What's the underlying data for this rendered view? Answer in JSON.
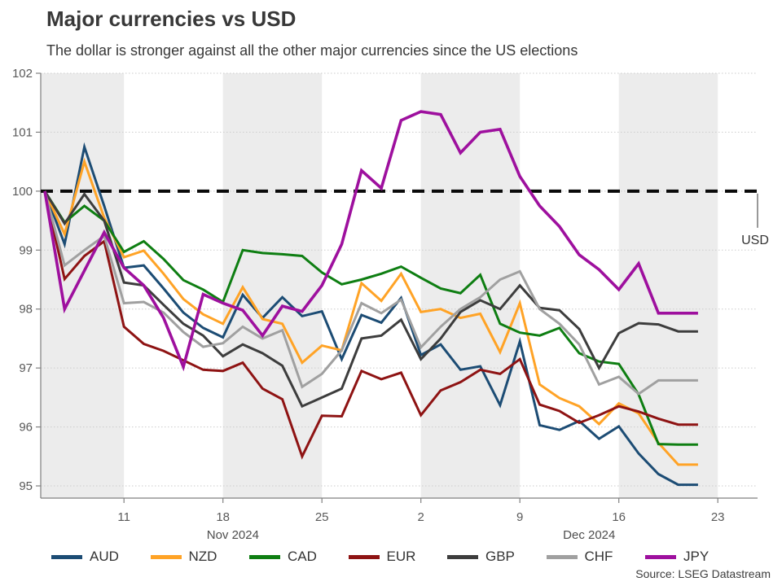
{
  "chart_data": {
    "type": "line",
    "title": "Major currencies vs USD",
    "subtitle": "The dollar is stronger against all the other major currencies since the US elections",
    "source": "Source: LSEG Datastream",
    "x_dates": [
      "Nov 5",
      "Nov 6",
      "Nov 7",
      "Nov 8",
      "Nov 11",
      "Nov 12",
      "Nov 13",
      "Nov 14",
      "Nov 15",
      "Nov 18",
      "Nov 19",
      "Nov 20",
      "Nov 21",
      "Nov 22",
      "Nov 25",
      "Nov 26",
      "Nov 27",
      "Nov 28",
      "Nov 29",
      "Dec 2",
      "Dec 3",
      "Dec 4",
      "Dec 5",
      "Dec 6",
      "Dec 9",
      "Dec 10",
      "Dec 11",
      "Dec 12",
      "Dec 13",
      "Dec 16",
      "Dec 17",
      "Dec 18",
      "Dec 19",
      "Dec 20"
    ],
    "x_axis": {
      "tick_labels": [
        "11",
        "18",
        "25",
        "2",
        "9",
        "16",
        "23"
      ],
      "tick_day_indices": [
        4,
        9,
        14,
        19,
        24,
        29,
        34
      ],
      "month_labels": [
        {
          "text": "Nov 2024",
          "center_index": 9.5
        },
        {
          "text": "Dec 2024",
          "center_index": 27.5
        }
      ]
    },
    "y_axis": {
      "ticks": [
        95,
        96,
        97,
        98,
        99,
        100,
        101,
        102
      ],
      "top": 102,
      "bottom_visible": 94.8
    },
    "ylim": [
      95,
      102
    ],
    "grid": "dotted-horizontal",
    "legend_position": "bottom",
    "baseline": {
      "value": 100,
      "label": "USD"
    },
    "shaded_week_bands": [
      [
        -1,
        4
      ],
      [
        9,
        14
      ],
      [
        19,
        24
      ],
      [
        29,
        34
      ]
    ],
    "style": {
      "band_color": "#ECECEC",
      "grid_color": "#CBCBCB",
      "axis_color": "#808080",
      "baseline_color": "#0A0A0A",
      "text_color": "#595959",
      "label_color": "#333333"
    },
    "series": [
      {
        "name": "AUD",
        "color": "#1C4C74",
        "width": 3,
        "values": [
          100,
          99.1,
          100.75,
          99.75,
          98.7,
          98.74,
          98.35,
          97.94,
          97.68,
          97.52,
          98.24,
          97.85,
          98.2,
          97.88,
          97.96,
          97.15,
          97.9,
          97.77,
          98.19,
          97.22,
          97.4,
          96.97,
          97.03,
          96.37,
          97.45,
          96.03,
          95.95,
          96.1,
          95.8,
          96.01,
          95.55,
          95.2,
          95.02,
          95.02
        ]
      },
      {
        "name": "NZD",
        "color": "#FFA326",
        "width": 3,
        "values": [
          100,
          99.27,
          100.5,
          99.55,
          98.88,
          98.99,
          98.6,
          98.17,
          97.91,
          97.75,
          98.37,
          97.83,
          97.75,
          97.09,
          97.38,
          97.3,
          98.44,
          98.14,
          98.6,
          97.95,
          98.0,
          97.85,
          97.92,
          97.27,
          98.1,
          96.72,
          96.49,
          96.35,
          96.05,
          96.4,
          96.23,
          95.73,
          95.36,
          95.36
        ]
      },
      {
        "name": "CAD",
        "color": "#0E7E12",
        "width": 3,
        "values": [
          100,
          99.47,
          99.75,
          99.5,
          98.97,
          99.15,
          98.85,
          98.49,
          98.33,
          98.12,
          99.0,
          98.95,
          98.93,
          98.9,
          98.62,
          98.42,
          98.5,
          98.6,
          98.72,
          98.53,
          98.35,
          98.27,
          98.58,
          97.75,
          97.6,
          97.55,
          97.68,
          97.25,
          97.11,
          97.07,
          96.55,
          95.71,
          95.7,
          95.7
        ]
      },
      {
        "name": "EUR",
        "color": "#8E1313",
        "width": 3,
        "values": [
          100,
          98.51,
          98.9,
          99.15,
          97.7,
          97.41,
          97.29,
          97.13,
          96.97,
          96.95,
          97.09,
          96.65,
          96.47,
          95.5,
          96.19,
          96.18,
          96.95,
          96.81,
          96.92,
          96.2,
          96.62,
          96.76,
          96.97,
          96.9,
          97.15,
          96.38,
          96.27,
          96.07,
          96.2,
          96.35,
          96.26,
          96.14,
          96.04,
          96.04
        ]
      },
      {
        "name": "GBP",
        "color": "#3D3D3D",
        "width": 3,
        "values": [
          100,
          99.45,
          99.95,
          99.5,
          98.45,
          98.4,
          98.07,
          97.75,
          97.55,
          97.2,
          97.4,
          97.25,
          97.04,
          96.35,
          96.5,
          96.65,
          97.5,
          97.55,
          97.82,
          97.15,
          97.5,
          97.95,
          98.15,
          98.0,
          98.4,
          98.02,
          97.98,
          97.66,
          97.0,
          97.59,
          97.76,
          97.74,
          97.62,
          97.62
        ]
      },
      {
        "name": "CHF",
        "color": "#A0A0A0",
        "width": 3,
        "values": [
          100,
          98.74,
          99.0,
          99.24,
          98.1,
          98.12,
          97.94,
          97.61,
          97.36,
          97.42,
          97.7,
          97.5,
          97.64,
          96.68,
          96.9,
          97.3,
          98.1,
          97.93,
          98.16,
          97.35,
          97.7,
          98.0,
          98.2,
          98.5,
          98.64,
          98.0,
          97.75,
          97.4,
          96.72,
          96.85,
          96.56,
          96.79,
          96.79,
          96.79
        ]
      },
      {
        "name": "JPY",
        "color": "#9E109E",
        "width": 3.6,
        "values": [
          100,
          98.0,
          98.65,
          99.3,
          98.7,
          98.4,
          97.85,
          97.02,
          98.25,
          98.1,
          97.98,
          97.55,
          98.05,
          97.96,
          98.4,
          99.1,
          100.35,
          100.05,
          101.2,
          101.35,
          101.3,
          100.65,
          101.0,
          101.05,
          100.25,
          99.75,
          99.4,
          98.92,
          98.67,
          98.33,
          98.77,
          97.93,
          97.93,
          97.93
        ]
      }
    ]
  }
}
